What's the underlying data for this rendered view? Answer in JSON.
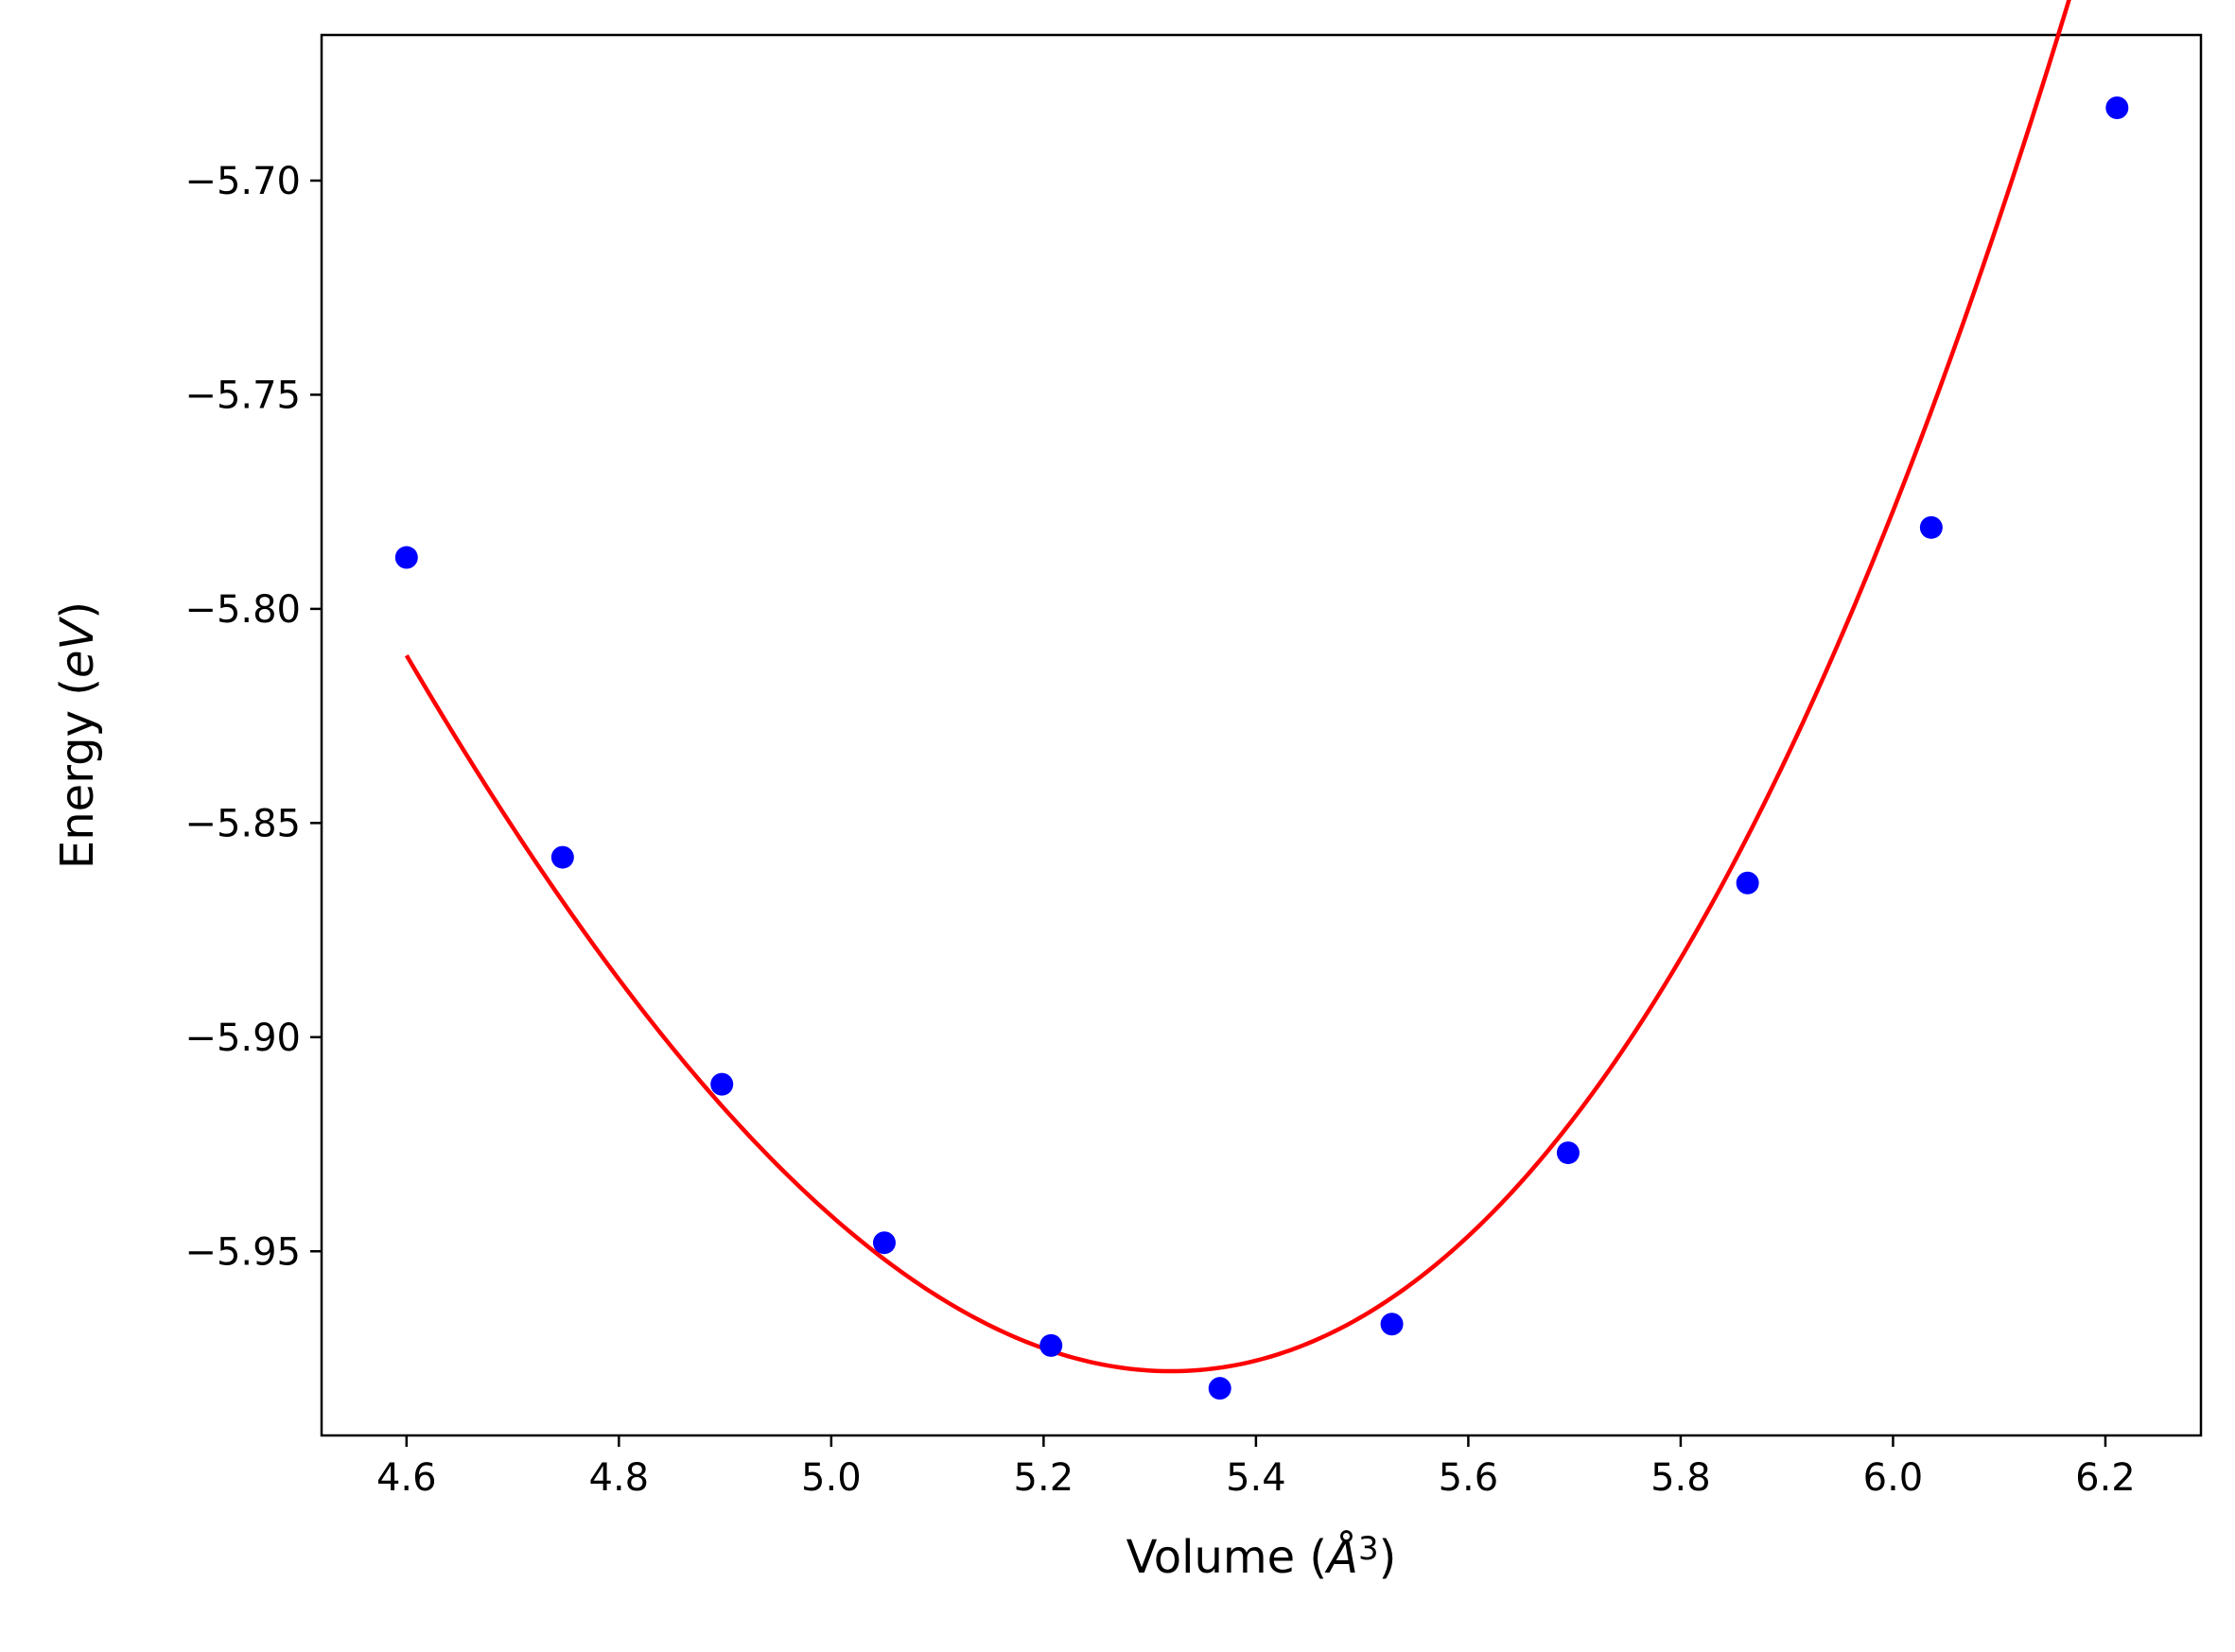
{
  "chart_data": {
    "type": "scatter",
    "xlabel": "Volume (Å³)",
    "xlabel_main": "Volume (",
    "xlabel_unit": "Å",
    "xlabel_exp": "3",
    "xlabel_close": ")",
    "ylabel": "Energy (eV)",
    "ylabel_main": "Energy (",
    "ylabel_unit": "eV",
    "ylabel_close": ")",
    "xlim": [
      4.52,
      6.29
    ],
    "ylim": [
      -5.993,
      -5.666
    ],
    "x_ticks": [
      4.6,
      4.8,
      5.0,
      5.2,
      5.4,
      5.6,
      5.8,
      6.0,
      6.2
    ],
    "x_tick_labels": [
      "4.6",
      "4.8",
      "5.0",
      "5.2",
      "5.4",
      "5.6",
      "5.8",
      "6.0",
      "6.2"
    ],
    "y_ticks": [
      -5.7,
      -5.75,
      -5.8,
      -5.85,
      -5.9,
      -5.95
    ],
    "y_tick_labels": [
      "−5.70",
      "−5.75",
      "−5.80",
      "−5.85",
      "−5.90",
      "−5.95"
    ],
    "grid": false,
    "series": [
      {
        "kind": "points",
        "color": "#0000ff",
        "x": [
          4.6,
          4.747,
          4.897,
          5.05,
          5.207,
          5.366,
          5.528,
          5.694,
          5.863,
          6.036,
          6.211
        ],
        "y": [
          -5.788,
          -5.858,
          -5.911,
          -5.948,
          -5.972,
          -5.982,
          -5.967,
          -5.927,
          -5.864,
          -5.781,
          -5.683
        ]
      },
      {
        "kind": "fit-line",
        "color": "#ff0000",
        "model": "cubic",
        "x0": 5.32,
        "coefficients": [
          -5.978,
          0.0,
          0.38,
          0.08
        ],
        "x_range": [
          4.6,
          6.211
        ]
      }
    ]
  }
}
